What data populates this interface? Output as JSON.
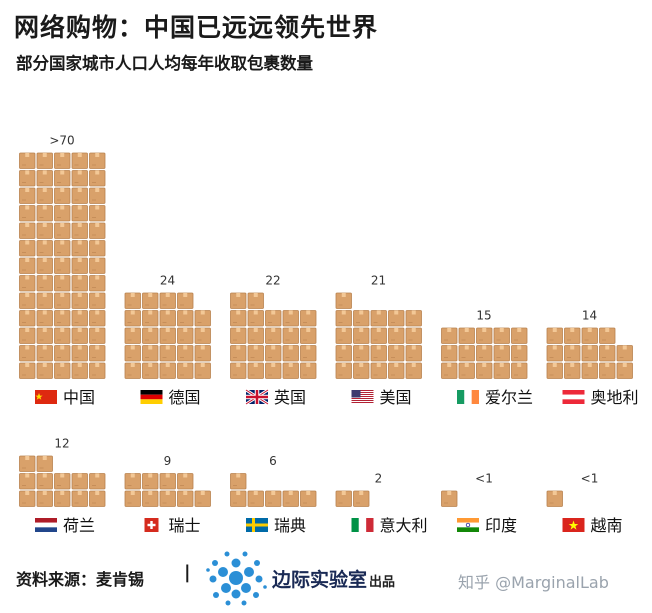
{
  "title": "网络购物：中国已远远领先世界",
  "subtitle": "部分国家城市人口人均每年收取包裹数量",
  "chart_data": {
    "type": "bar",
    "title": "网络购物：中国已远远领先世界",
    "subtitle": "部分国家城市人口人均每年收取包裹数量",
    "categories": [
      "中国",
      "德国",
      "英国",
      "美国",
      "爱尔兰",
      "奥地利",
      "荷兰",
      "瑞士",
      "瑞典",
      "意大利",
      "印度",
      "越南"
    ],
    "values": [
      70,
      24,
      22,
      21,
      15,
      14,
      12,
      9,
      6,
      2,
      1,
      1
    ],
    "value_labels": [
      ">70",
      "24",
      "22",
      "21",
      "15",
      "14",
      "12",
      "9",
      "6",
      "2",
      "<1",
      "<1"
    ],
    "flags": [
      "cn",
      "de",
      "gb",
      "us",
      "ie",
      "at",
      "nl",
      "ch",
      "se",
      "it",
      "in",
      "vn"
    ],
    "colors": {
      "box": "#d9a16a",
      "box_edge": "#b9824f",
      "tape": "#f3c896"
    }
  },
  "footer": {
    "source": "资料来源：麦肯锡",
    "separator": "|",
    "lab_name": "边际实验室",
    "lab_suffix": "出品",
    "watermark": "知乎 @MarginalLab"
  }
}
